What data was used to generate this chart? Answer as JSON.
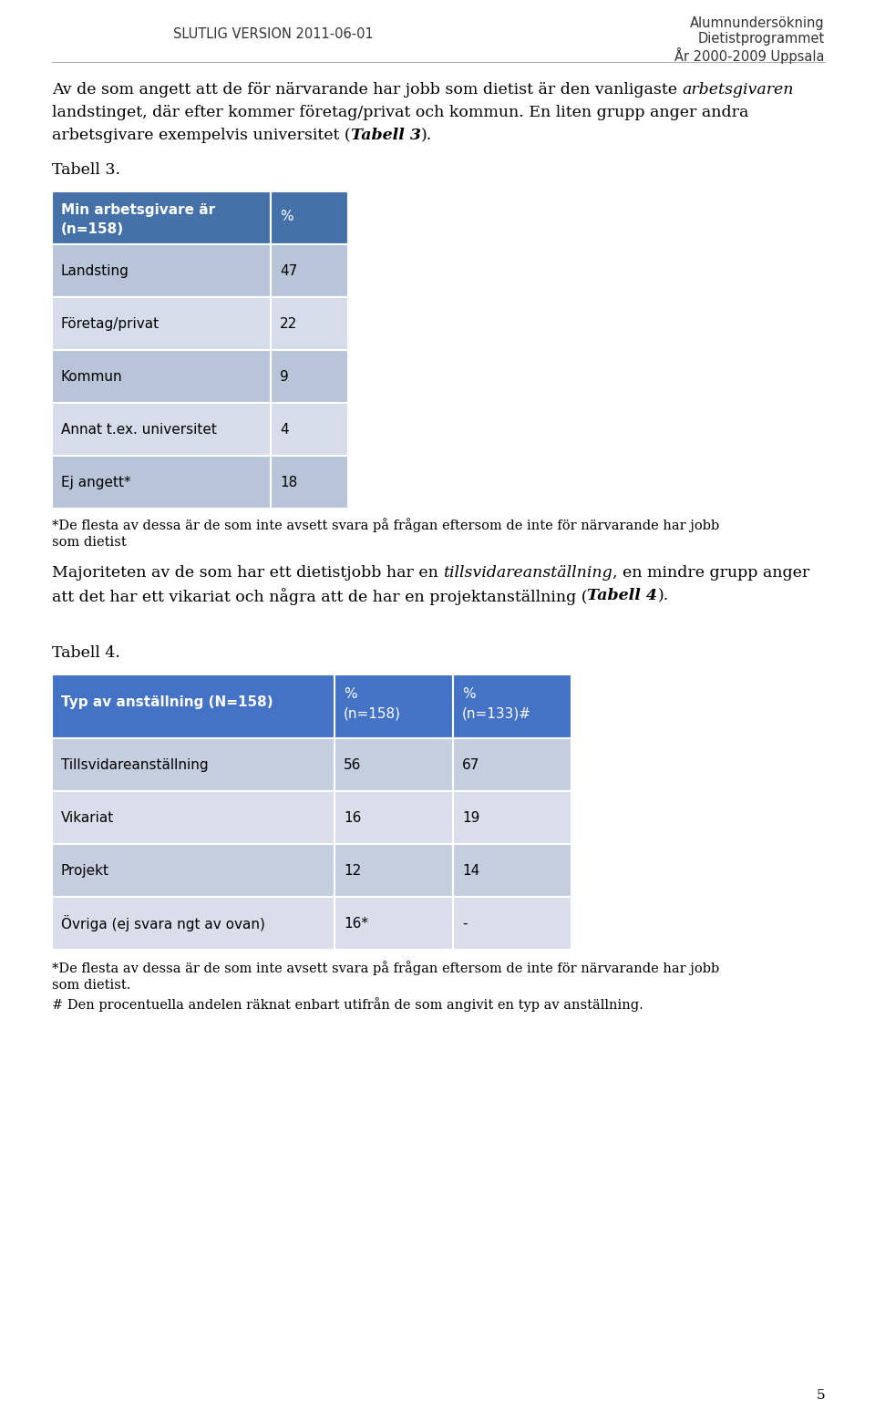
{
  "header_left": "SLUTLIG VERSION 2011-06-01",
  "header_right_lines": [
    "Alumnundersökning",
    "Dietistprogrammet",
    "År 2000-2009 Uppsala"
  ],
  "tabell3_label": "Tabell 3.",
  "table3_header_col1": "Min arbetsgivare är",
  "table3_header_col1b": "(n=158)",
  "table3_header_col2": "%",
  "table3_rows": [
    [
      "Landsting",
      "47"
    ],
    [
      "Företag/privat",
      "22"
    ],
    [
      "Kommun",
      "9"
    ],
    [
      "Annat t.ex. universitet",
      "4"
    ],
    [
      "Ej angett*",
      "18"
    ]
  ],
  "table3_note_line1": "*De flesta av dessa är de som inte avsett svara på frågan eftersom de inte för närvarande har jobb",
  "table3_note_line2": "som dietist",
  "tabell4_label": "Tabell 4.",
  "table4_header_col1": "Typ av anställning (N=158)",
  "table4_header_col2a": "%",
  "table4_header_col2b": "(n=158)",
  "table4_header_col3a": "%",
  "table4_header_col3b": "(n=133)#",
  "table4_rows": [
    [
      "Tillsvidareanställning",
      "56",
      "67"
    ],
    [
      "Vikariat",
      "16",
      "19"
    ],
    [
      "Projekt",
      "12",
      "14"
    ],
    [
      "Övriga (ej svara ngt av ovan)",
      "16*",
      "-"
    ]
  ],
  "table4_note1_line1": "*De flesta av dessa är de som inte avsett svara på frågan eftersom de inte för närvarande har jobb",
  "table4_note1_line2": "som dietist.",
  "table4_note2": "# Den procentuella andelen räknat enbart utifrån de som angivit en typ av anställning.",
  "page_number": "5",
  "header_blue": "#4472A8",
  "row_light_blue": "#B8C5D8",
  "row_lighter_blue": "#D6DCE9",
  "table4_header_blue": "#4472C4",
  "table4_row_light": "#C5CEDF",
  "table4_row_lighter": "#D9DEEA",
  "bg_color": "#FFFFFF",
  "text_color": "#000000"
}
